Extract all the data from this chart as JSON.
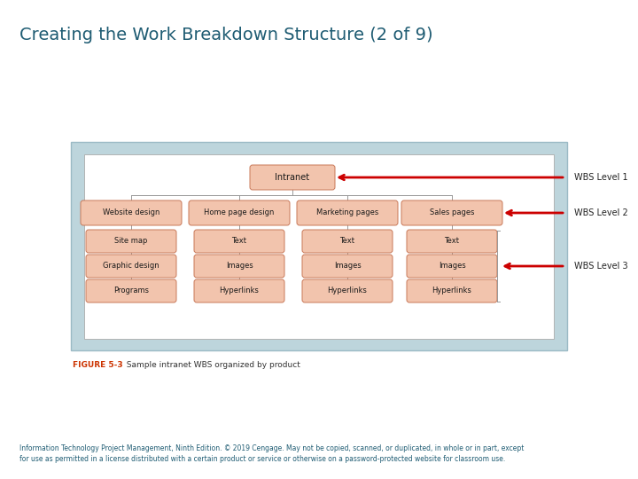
{
  "title": "Creating the Work Breakdown Structure (2 of 9)",
  "title_color": "#1F5C73",
  "title_fontsize": 14,
  "bg_color": "#FFFFFF",
  "diagram_bg": "#BDD5DC",
  "inner_bg": "#FFFFFF",
  "box_fill": "#F2C4AD",
  "box_edge": "#C87858",
  "figure_label": "FIGURE 5-3",
  "figure_caption": "  Sample intranet WBS organized by product",
  "footer_line1": "Information Technology Project Management, Ninth Edition. © 2019 Cengage. May not be copied, scanned, or duplicated, in whole or in part, except",
  "footer_line2": "for use as permitted in a license distributed with a certain product or service or otherwise on a password-protected website for classroom use.",
  "footer_color": "#1F5C73",
  "wbs_labels": [
    "WBS Level 1",
    "WBS Level 2",
    "WBS Level 3"
  ],
  "arrow_color": "#CC0000",
  "line_color": "#999999",
  "label_color": "#CC3300",
  "level2_labels": [
    "Website design",
    "Home page design",
    "Marketing pages",
    "Sales pages"
  ],
  "level3_cols": [
    [
      "Site map",
      "Graphic design",
      "Programs"
    ],
    [
      "Text",
      "Images",
      "Hyperlinks"
    ],
    [
      "Text",
      "Images",
      "Hyperlinks"
    ],
    [
      "Text",
      "Images",
      "Hyperlinks"
    ]
  ]
}
